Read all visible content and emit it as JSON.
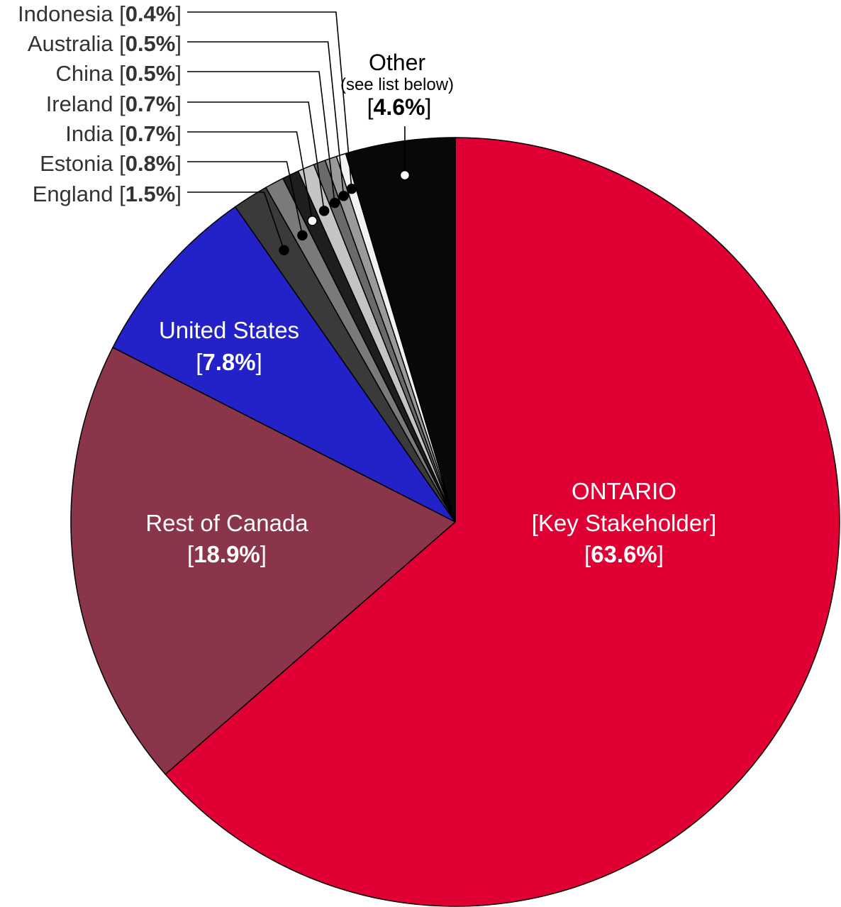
{
  "chart_data": {
    "type": "pie",
    "slices": [
      {
        "name": "ONTARIO",
        "sub": "[Key Stakeholder]",
        "value": 63.6,
        "label": "63.6%",
        "color": "#E00034",
        "text_color": "#ffffff"
      },
      {
        "name": "Rest of Canada",
        "value": 18.9,
        "label": "18.9%",
        "color": "#8B354B",
        "text_color": "#ffffff"
      },
      {
        "name": "United States",
        "value": 7.8,
        "label": "7.8%",
        "color": "#2222C8",
        "text_color": "#ffffff"
      },
      {
        "name": "England",
        "value": 1.5,
        "label": "1.5%",
        "color": "#3A3A3A",
        "dot": "#000000"
      },
      {
        "name": "Estonia",
        "value": 0.8,
        "label": "0.8%",
        "color": "#7A7A7A",
        "dot": "#000000"
      },
      {
        "name": "India",
        "value": 0.7,
        "label": "0.7%",
        "color": "#1E1E1E",
        "dot": "#ffffff"
      },
      {
        "name": "Ireland",
        "value": 0.7,
        "label": "0.7%",
        "color": "#C4C4C4",
        "dot": "#000000"
      },
      {
        "name": "China",
        "value": 0.5,
        "label": "0.5%",
        "color": "#6A6A6A",
        "dot": "#000000"
      },
      {
        "name": "Australia",
        "value": 0.5,
        "label": "0.5%",
        "color": "#9A9A9A",
        "dot": "#000000"
      },
      {
        "name": "Indonesia",
        "value": 0.4,
        "label": "0.4%",
        "color": "#F2F2F2",
        "dot": "#000000"
      },
      {
        "name": "Other",
        "sub": "(see list below)",
        "value": 4.6,
        "label": "4.6%",
        "color": "#080808",
        "dot": "#ffffff"
      }
    ],
    "title": "",
    "legend": "none",
    "label_text_color": "#333333"
  }
}
